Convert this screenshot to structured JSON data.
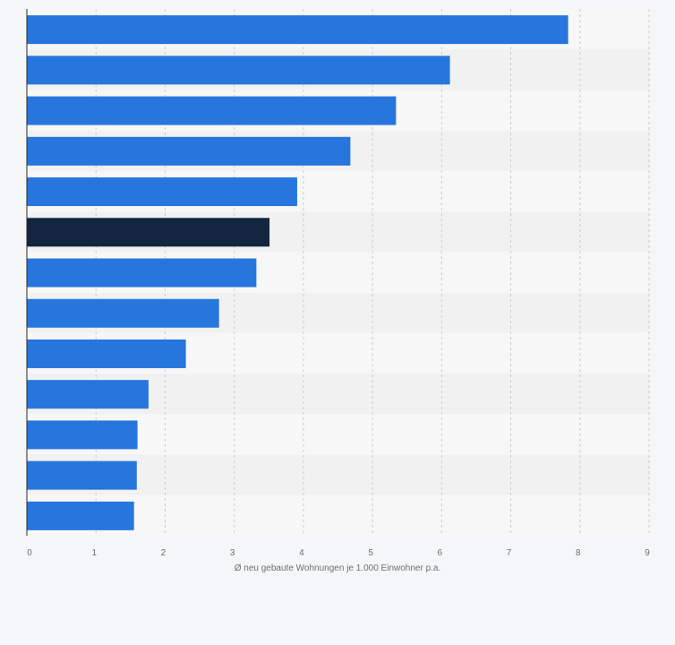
{
  "chart_data": {
    "type": "bar",
    "orientation": "horizontal",
    "xlabel": "Ø neu gebaute Wohnungen je 1.000 Einwohner p.a.",
    "xlim": [
      0,
      9
    ],
    "x_ticks": [
      "0",
      "1",
      "2",
      "3",
      "4",
      "5",
      "6",
      "7",
      "8",
      "9"
    ],
    "grid": true,
    "values": [
      7.83,
      6.12,
      5.34,
      4.68,
      3.91,
      3.51,
      3.32,
      2.78,
      2.3,
      1.76,
      1.6,
      1.59,
      1.55
    ],
    "highlight_index": 5,
    "colors": {
      "bar": "#2776dd",
      "highlight": "#13253f",
      "band_light": "#f7f7f8",
      "band_dark": "#f1f1f2",
      "grid": "#c9ccd0",
      "tick_text": "#6a6f75",
      "axis": "#2b2b2b"
    }
  }
}
